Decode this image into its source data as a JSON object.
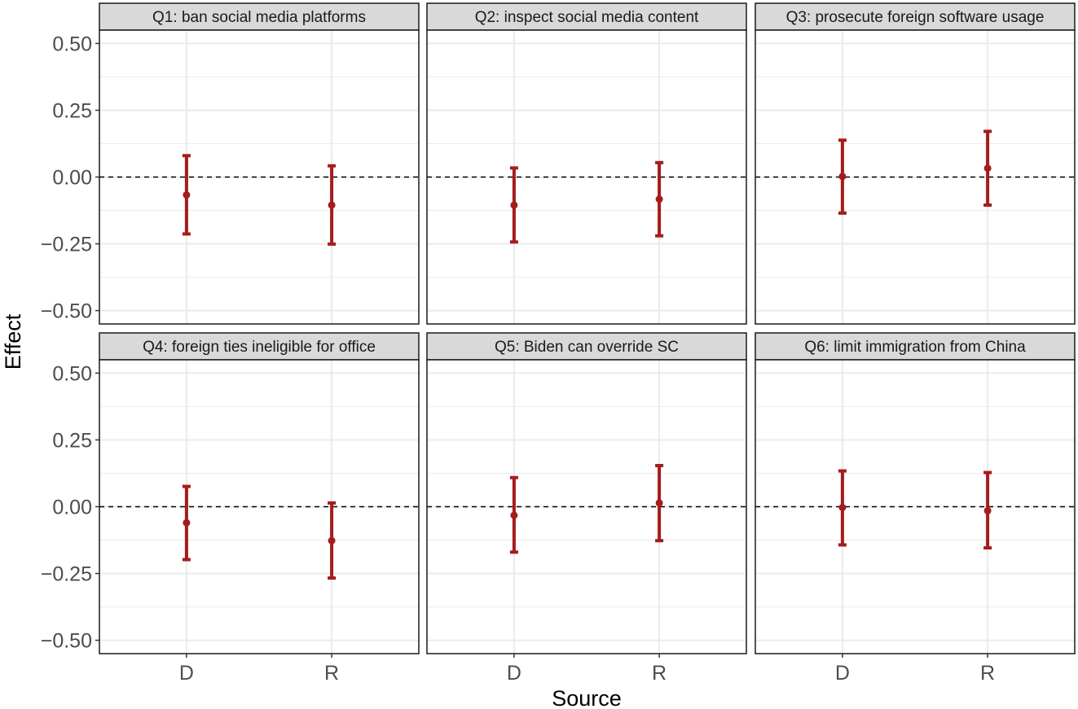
{
  "chart_data": {
    "type": "errorbar",
    "xlabel": "Source",
    "ylabel": "Effect",
    "categories": [
      "D",
      "R"
    ],
    "ylim": [
      -0.55,
      0.55
    ],
    "yticks": [
      0.5,
      0.25,
      0.0,
      -0.25,
      -0.5
    ],
    "ytick_labels": [
      "0.50",
      "0.25",
      "0.00",
      "−0.25",
      "−0.50"
    ],
    "reference_line": 0,
    "grid": true,
    "colors": {
      "series": "#a51c1c",
      "strip": "#d9d9d9",
      "grid": "#ebebeb",
      "border": "#1a1a1a"
    },
    "panels": [
      {
        "title": "Q1: ban social media platforms",
        "points": [
          {
            "x": "D",
            "estimate": -0.067,
            "lower": -0.213,
            "upper": 0.08
          },
          {
            "x": "R",
            "estimate": -0.105,
            "lower": -0.251,
            "upper": 0.042
          }
        ]
      },
      {
        "title": "Q2: inspect social media content",
        "points": [
          {
            "x": "D",
            "estimate": -0.105,
            "lower": -0.243,
            "upper": 0.034
          },
          {
            "x": "R",
            "estimate": -0.083,
            "lower": -0.22,
            "upper": 0.054
          }
        ]
      },
      {
        "title": "Q3: prosecute foreign software usage",
        "points": [
          {
            "x": "D",
            "estimate": 0.002,
            "lower": -0.135,
            "upper": 0.138
          },
          {
            "x": "R",
            "estimate": 0.033,
            "lower": -0.105,
            "upper": 0.171
          }
        ]
      },
      {
        "title": "Q4: foreign ties ineligible for office",
        "points": [
          {
            "x": "D",
            "estimate": -0.06,
            "lower": -0.198,
            "upper": 0.076
          },
          {
            "x": "R",
            "estimate": -0.127,
            "lower": -0.267,
            "upper": 0.014
          }
        ]
      },
      {
        "title": "Q5: Biden can override SC",
        "points": [
          {
            "x": "D",
            "estimate": -0.032,
            "lower": -0.17,
            "upper": 0.109
          },
          {
            "x": "R",
            "estimate": 0.014,
            "lower": -0.127,
            "upper": 0.154
          }
        ]
      },
      {
        "title": "Q6: limit immigration from China",
        "points": [
          {
            "x": "D",
            "estimate": -0.003,
            "lower": -0.143,
            "upper": 0.134
          },
          {
            "x": "R",
            "estimate": -0.015,
            "lower": -0.154,
            "upper": 0.128
          }
        ]
      }
    ]
  }
}
